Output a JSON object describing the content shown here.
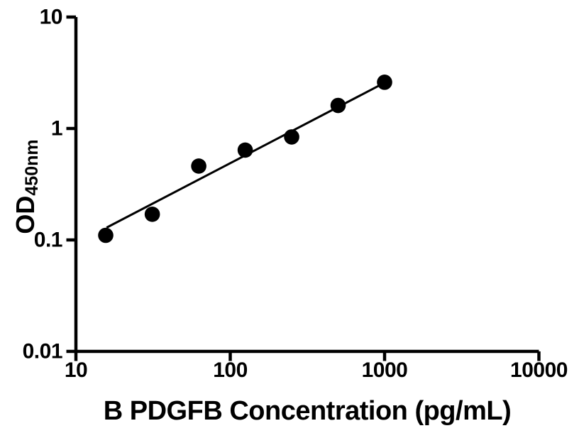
{
  "page": {
    "background_color": "#ffffff",
    "foreground_color": "#000000"
  },
  "chart_data": {
    "type": "scatter",
    "title": "",
    "xlabel": "B PDGFB Concentration (pg/mL)",
    "ylabel_main": "OD",
    "ylabel_sub": "450nm",
    "x_scale": "log",
    "y_scale": "log",
    "xlim": [
      10,
      10000
    ],
    "ylim": [
      0.01,
      10
    ],
    "grid": false,
    "legend_position": "none",
    "x_ticks": [
      {
        "value": 10,
        "label": "10"
      },
      {
        "value": 100,
        "label": "100"
      },
      {
        "value": 1000,
        "label": "1000"
      },
      {
        "value": 10000,
        "label": "10000"
      }
    ],
    "y_ticks": [
      {
        "value": 10,
        "label": "10"
      },
      {
        "value": 1,
        "label": "1"
      },
      {
        "value": 0.1,
        "label": "0.1"
      },
      {
        "value": 0.01,
        "label": "0.01"
      }
    ],
    "series": [
      {
        "name": "standard-curve-points",
        "marker": "filled-circle",
        "marker_color": "#000000",
        "points": [
          {
            "x": 15.6,
            "y": 0.11
          },
          {
            "x": 31.25,
            "y": 0.17
          },
          {
            "x": 62.5,
            "y": 0.46
          },
          {
            "x": 125,
            "y": 0.64
          },
          {
            "x": 250,
            "y": 0.84
          },
          {
            "x": 500,
            "y": 1.61
          },
          {
            "x": 1000,
            "y": 2.6
          }
        ]
      }
    ],
    "fit_line": {
      "color": "#000000",
      "x1": 15.8,
      "y1": 0.129,
      "x2": 1020,
      "y2": 2.61
    }
  }
}
